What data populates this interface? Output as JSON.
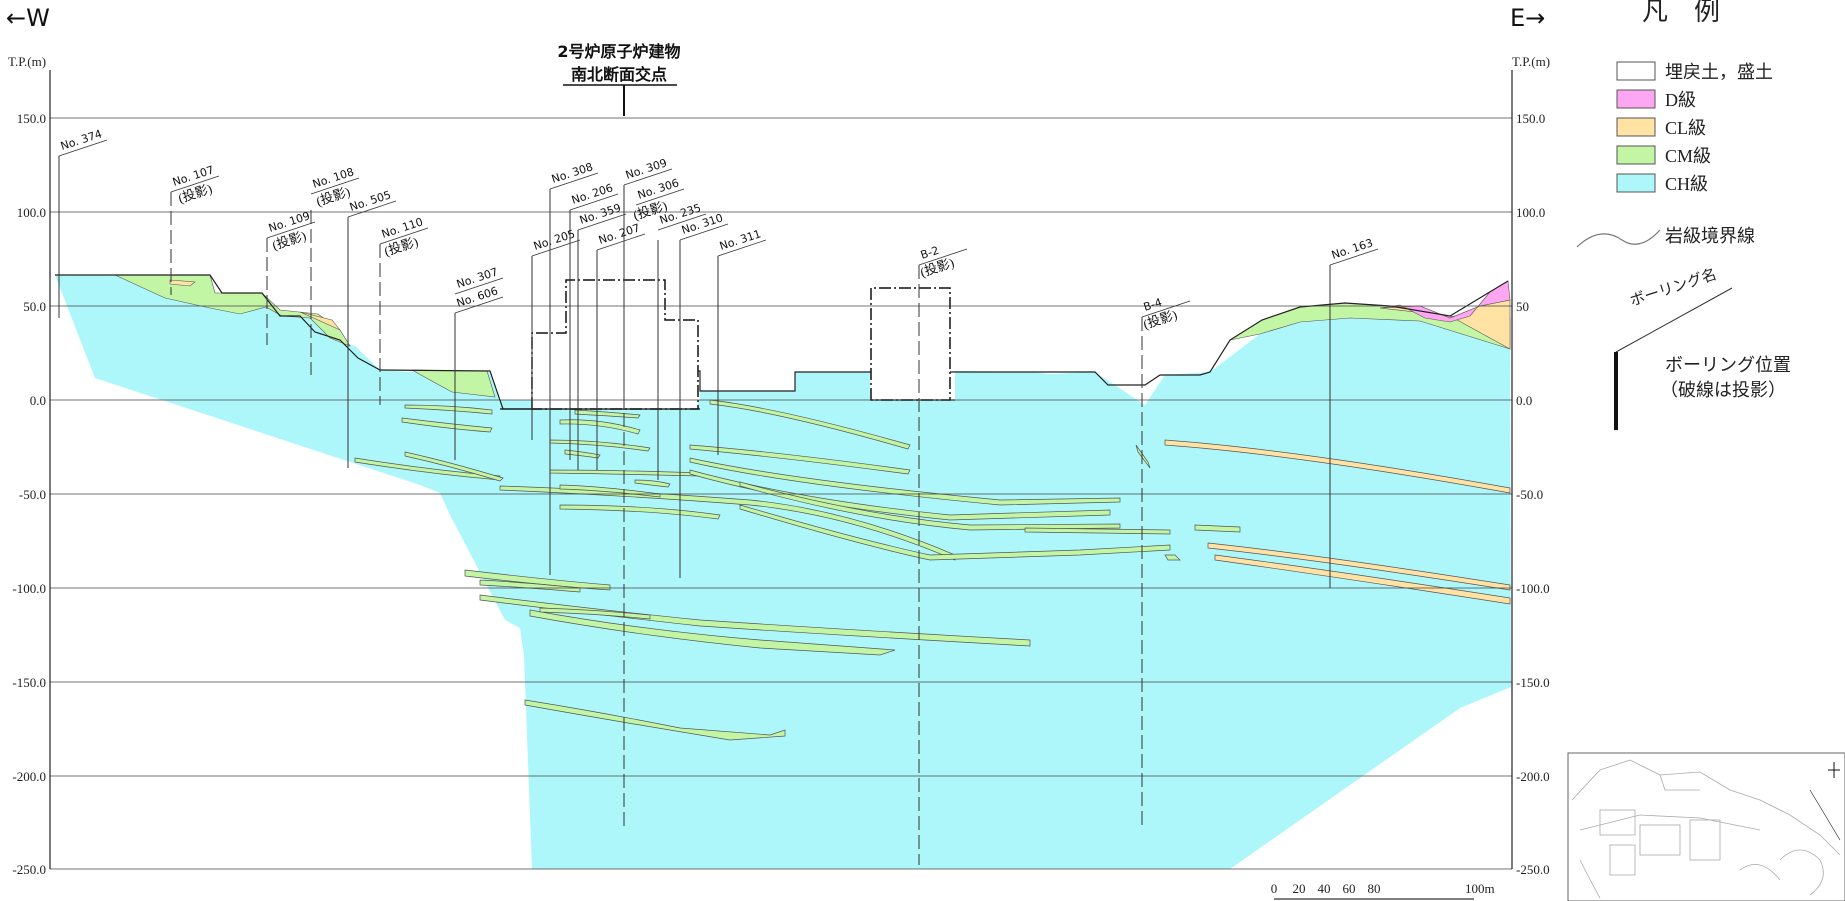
{
  "direction": {
    "west": "←W",
    "east": "E→"
  },
  "axis": {
    "unit_left": "T.P.(m)",
    "unit_right": "T.P.(m)",
    "ticks_left": [
      "150.0",
      "100.0",
      "50.0",
      "0.0",
      "-50.0",
      "-100.0",
      "-150.0",
      "-200.0",
      "-250.0"
    ],
    "ticks_right": [
      "150.0",
      "100.0",
      "50",
      "0.0",
      "-50.0",
      "-100.0",
      "-150.0",
      "-200.0",
      "-250.0"
    ]
  },
  "building": {
    "line1": "2号炉原子炉建物",
    "line2": "南北断面交点"
  },
  "boreholes": [
    {
      "id": "No. 374",
      "proj": ""
    },
    {
      "id": "No. 107",
      "proj": "(投影)"
    },
    {
      "id": "No. 108",
      "proj": "(投影)"
    },
    {
      "id": "No. 109",
      "proj": "(投影)"
    },
    {
      "id": "No. 505",
      "proj": ""
    },
    {
      "id": "No. 110",
      "proj": "(投影)"
    },
    {
      "id": "No. 307",
      "proj": ""
    },
    {
      "id": "No. 606",
      "proj": ""
    },
    {
      "id": "No. 205",
      "proj": ""
    },
    {
      "id": "No. 308",
      "proj": ""
    },
    {
      "id": "No. 206",
      "proj": ""
    },
    {
      "id": "No. 359",
      "proj": ""
    },
    {
      "id": "No. 309",
      "proj": ""
    },
    {
      "id": "No. 306",
      "proj": "(投影)"
    },
    {
      "id": "No. 207",
      "proj": ""
    },
    {
      "id": "No. 235",
      "proj": ""
    },
    {
      "id": "No. 310",
      "proj": ""
    },
    {
      "id": "No. 311",
      "proj": ""
    },
    {
      "id": "B-2",
      "proj": "(投影)"
    },
    {
      "id": "B-4",
      "proj": "(投影)"
    },
    {
      "id": "No. 163",
      "proj": ""
    }
  ],
  "legend": {
    "title": "凡　例",
    "items": [
      {
        "label": "埋戻土，盛土",
        "color": "#ffffff"
      },
      {
        "label": "D級",
        "color": "#ffa6f2"
      },
      {
        "label": "CL級",
        "color": "#ffe2a4"
      },
      {
        "label": "CM級",
        "color": "#c2f5a4"
      },
      {
        "label": "CH級",
        "color": "#adf7fb"
      }
    ],
    "boundary_label": "岩級境界線",
    "boring_name": "ボーリング名",
    "boring_pos_line1": "ボーリング位置",
    "boring_pos_line2": "（破線は投影）"
  },
  "scale": {
    "labels": [
      "0",
      "20",
      "40",
      "60",
      "80",
      "100m"
    ]
  }
}
